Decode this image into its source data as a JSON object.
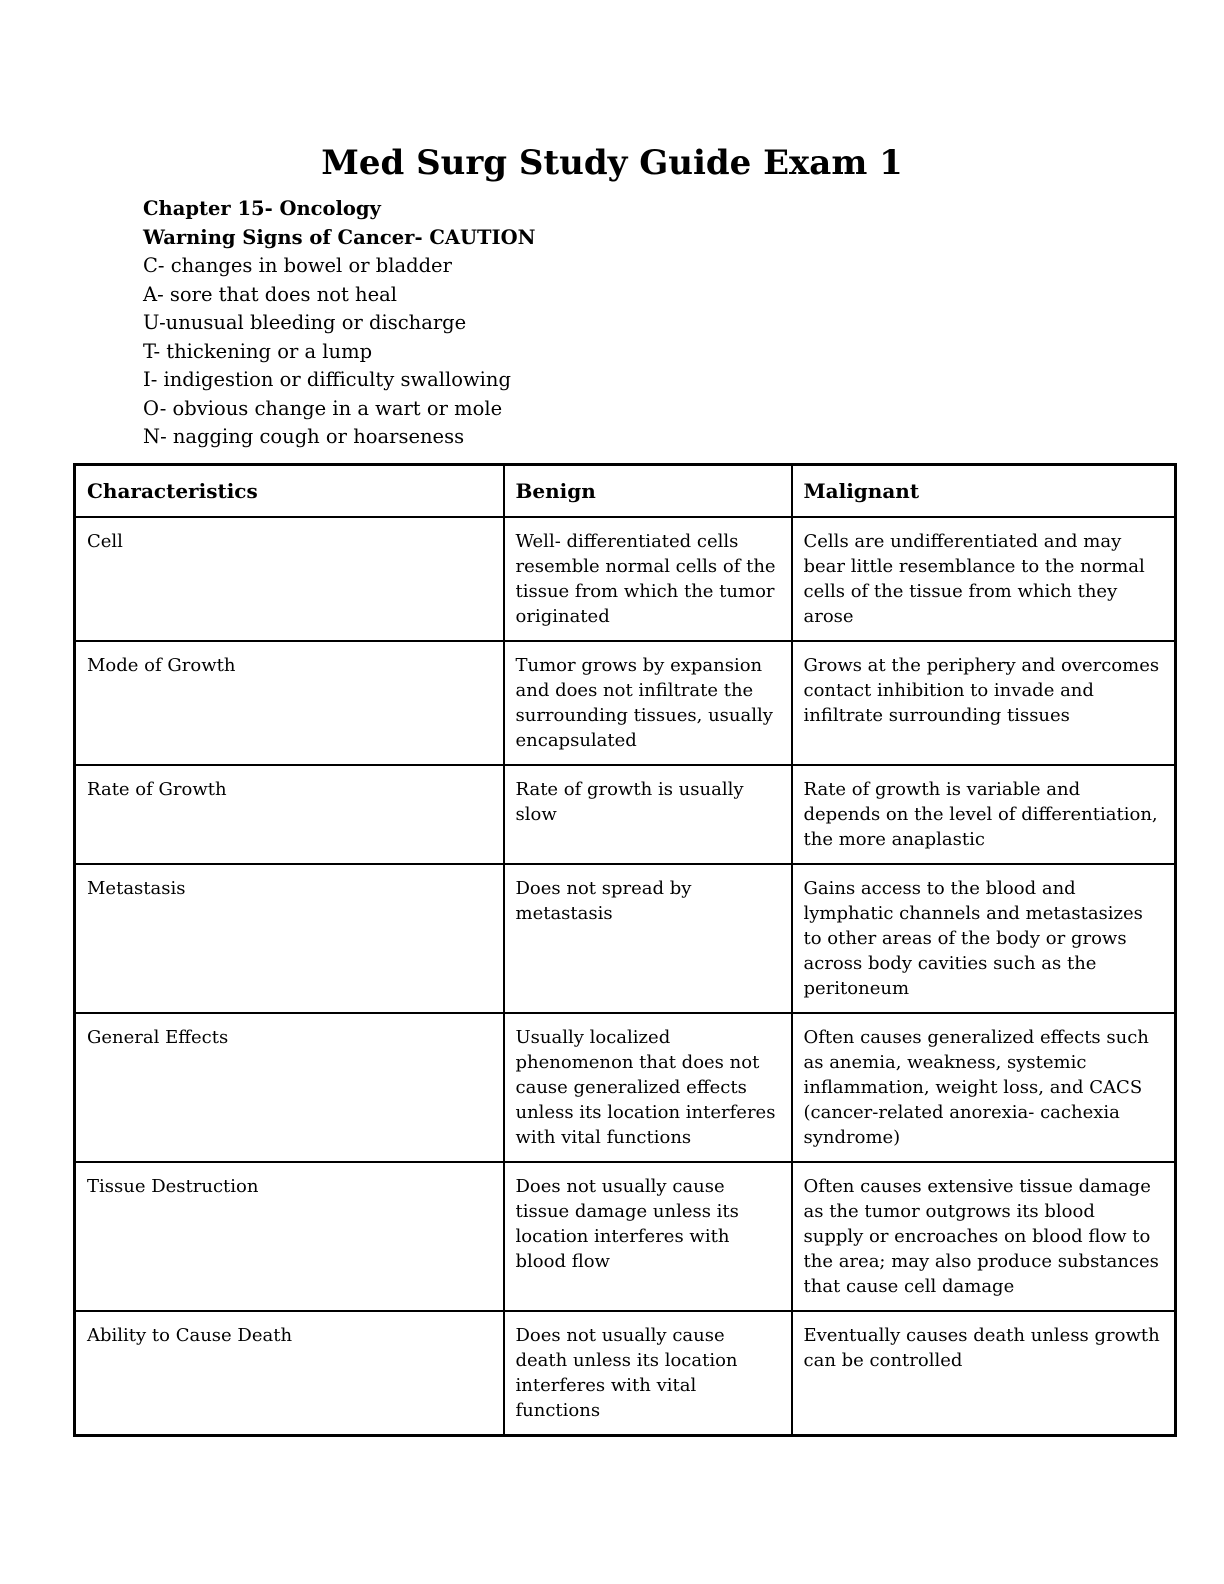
{
  "colors": {
    "text": "#000000",
    "background": "#ffffff",
    "table_border": "#000000"
  },
  "page": {
    "title": "Med Surg Study Guide Exam 1"
  },
  "intro": {
    "chapter_heading": "Chapter 15- Oncology",
    "warning_heading": "Warning Signs of Cancer- CAUTION",
    "caution_items": [
      "C- changes in bowel or bladder",
      "A- sore that does not heal",
      "U-unusual bleeding or discharge",
      "T- thickening or a lump",
      "I- indigestion or difficulty swallowing",
      "O- obvious change in a wart or mole",
      "N- nagging cough or hoarseness"
    ]
  },
  "table": {
    "headers": [
      "Characteristics",
      "Benign",
      "Malignant"
    ],
    "rows": [
      {
        "characteristic": "Cell",
        "benign": "Well- differentiated cells resemble normal cells of the tissue from which the tumor originated",
        "malignant": "Cells are undifferentiated and may bear little resemblance to the normal cells of the tissue from which they arose"
      },
      {
        "characteristic": "Mode of Growth",
        "benign": "Tumor grows by expansion and does not infiltrate the surrounding tissues, usually encapsulated",
        "malignant": "Grows at the periphery and overcomes contact inhibition to invade and infiltrate surrounding tissues"
      },
      {
        "characteristic": "Rate of Growth",
        "benign": "Rate of growth is usually slow",
        "malignant": "Rate of growth is variable and depends on the level of differentiation, the more anaplastic"
      },
      {
        "characteristic": "Metastasis",
        "benign": "Does not spread by metastasis",
        "malignant": "Gains access to the blood and lymphatic channels and metastasizes to other areas of the body or grows across body cavities such as the peritoneum"
      },
      {
        "characteristic": "General Effects",
        "benign": "Usually localized phenomenon that does not cause generalized effects unless its location interferes with vital functions",
        "malignant": "Often causes generalized effects such as anemia, weakness, systemic inflammation, weight loss, and CACS (cancer-related anorexia- cachexia syndrome)"
      },
      {
        "characteristic": "Tissue Destruction",
        "benign": "Does not usually cause tissue damage unless its location interferes with blood flow",
        "malignant": "Often causes extensive tissue damage as the tumor outgrows its blood supply or encroaches on blood flow to the area; may also produce substances that cause cell damage"
      },
      {
        "characteristic": "Ability to Cause Death",
        "benign": "Does not usually cause death unless its location interferes with vital functions",
        "malignant": "Eventually causes death unless growth can be controlled"
      }
    ]
  }
}
